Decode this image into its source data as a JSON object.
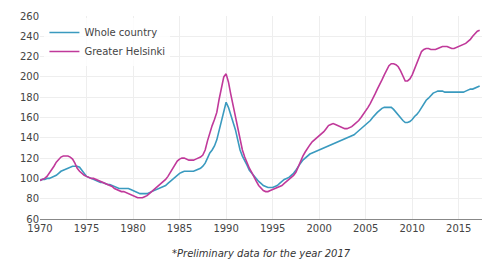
{
  "chart_data": {
    "type": "line",
    "annotations": [
      "*Preliminary data for the year 2017"
    ],
    "x": [
      1970.0,
      1970.25,
      1970.5,
      1970.75,
      1971.0,
      1971.25,
      1971.5,
      1971.75,
      1972.0,
      1972.25,
      1972.5,
      1972.75,
      1973.0,
      1973.25,
      1973.5,
      1973.75,
      1974.0,
      1974.25,
      1974.5,
      1974.75,
      1975.0,
      1975.25,
      1975.5,
      1975.75,
      1976.0,
      1976.25,
      1976.5,
      1976.75,
      1977.0,
      1977.25,
      1977.5,
      1977.75,
      1978.0,
      1978.25,
      1978.5,
      1978.75,
      1979.0,
      1979.25,
      1979.5,
      1979.75,
      1980.0,
      1980.25,
      1980.5,
      1980.75,
      1981.0,
      1981.25,
      1981.5,
      1981.75,
      1982.0,
      1982.25,
      1982.5,
      1982.75,
      1983.0,
      1983.25,
      1983.5,
      1983.75,
      1984.0,
      1984.25,
      1984.5,
      1984.75,
      1985.0,
      1985.25,
      1985.5,
      1985.75,
      1986.0,
      1986.25,
      1986.5,
      1986.75,
      1987.0,
      1987.25,
      1987.5,
      1987.75,
      1988.0,
      1988.25,
      1988.5,
      1988.75,
      1989.0,
      1989.25,
      1989.5,
      1989.75,
      1990.0,
      1990.25,
      1990.5,
      1990.75,
      1991.0,
      1991.25,
      1991.5,
      1991.75,
      1992.0,
      1992.25,
      1992.5,
      1992.75,
      1993.0,
      1993.25,
      1993.5,
      1993.75,
      1994.0,
      1994.25,
      1994.5,
      1994.75,
      1995.0,
      1995.25,
      1995.5,
      1995.75,
      1996.0,
      1996.25,
      1996.5,
      1996.75,
      1997.0,
      1997.25,
      1997.5,
      1997.75,
      1998.0,
      1998.25,
      1998.5,
      1998.75,
      1999.0,
      1999.25,
      1999.5,
      1999.75,
      2000.0,
      2000.25,
      2000.5,
      2000.75,
      2001.0,
      2001.25,
      2001.5,
      2001.75,
      2002.0,
      2002.25,
      2002.5,
      2002.75,
      2003.0,
      2003.25,
      2003.5,
      2003.75,
      2004.0,
      2004.25,
      2004.5,
      2004.75,
      2005.0,
      2005.25,
      2005.5,
      2005.75,
      2006.0,
      2006.25,
      2006.5,
      2006.75,
      2007.0,
      2007.25,
      2007.5,
      2007.75,
      2008.0,
      2008.25,
      2008.5,
      2008.75,
      2009.0,
      2009.25,
      2009.5,
      2009.75,
      2010.0,
      2010.25,
      2010.5,
      2010.75,
      2011.0,
      2011.25,
      2011.5,
      2011.75,
      2012.0,
      2012.25,
      2012.5,
      2012.75,
      2013.0,
      2013.25,
      2013.5,
      2013.75,
      2014.0,
      2014.25,
      2014.5,
      2014.75,
      2015.0,
      2015.25,
      2015.5,
      2015.75,
      2016.0,
      2016.25,
      2016.5,
      2016.75,
      2017.0,
      2017.25
    ],
    "series": [
      {
        "name": "Whole country",
        "color": "#3a9abf",
        "values": [
          98,
          99,
          99,
          100,
          100,
          101,
          102,
          103,
          105,
          107,
          108,
          109,
          110,
          111,
          112,
          112,
          112,
          111,
          108,
          105,
          102,
          101,
          100,
          99,
          98,
          97,
          96,
          96,
          95,
          94,
          94,
          93,
          92,
          91,
          90,
          90,
          90,
          90,
          90,
          89,
          88,
          87,
          86,
          85,
          85,
          85,
          85,
          86,
          87,
          88,
          89,
          90,
          91,
          92,
          93,
          95,
          97,
          99,
          101,
          103,
          105,
          106,
          107,
          107,
          107,
          107,
          107,
          108,
          109,
          110,
          112,
          115,
          120,
          125,
          128,
          132,
          138,
          148,
          158,
          168,
          175,
          170,
          163,
          157,
          148,
          138,
          128,
          122,
          118,
          113,
          108,
          105,
          102,
          100,
          97,
          95,
          93,
          92,
          91,
          91,
          91,
          92,
          93,
          95,
          97,
          99,
          100,
          101,
          103,
          105,
          108,
          112,
          115,
          118,
          120,
          122,
          124,
          125,
          126,
          127,
          128,
          129,
          130,
          131,
          132,
          133,
          134,
          135,
          136,
          137,
          138,
          139,
          140,
          141,
          142,
          143,
          145,
          147,
          149,
          151,
          153,
          155,
          157,
          160,
          163,
          165,
          167,
          169,
          170,
          170,
          170,
          170,
          168,
          165,
          162,
          160,
          157,
          155,
          155,
          156,
          158,
          161,
          163,
          166,
          170,
          174,
          177,
          179,
          182,
          184,
          185,
          186,
          186,
          186,
          185,
          185,
          185,
          185,
          185,
          185,
          185,
          185,
          185,
          186,
          187,
          188,
          188,
          189,
          190,
          191
        ]
      },
      {
        "name": "Greater Helsinki",
        "color": "#c0399a",
        "values": [
          98,
          99,
          100,
          102,
          105,
          108,
          112,
          116,
          119,
          121,
          122,
          122,
          122,
          121,
          119,
          115,
          110,
          107,
          105,
          103,
          102,
          101,
          100,
          100,
          99,
          98,
          97,
          96,
          95,
          94,
          93,
          92,
          90,
          89,
          88,
          87,
          87,
          86,
          85,
          84,
          83,
          82,
          81,
          81,
          81,
          82,
          83,
          85,
          87,
          89,
          91,
          93,
          95,
          97,
          99,
          102,
          106,
          110,
          114,
          117,
          119,
          120,
          120,
          119,
          118,
          118,
          118,
          119,
          120,
          121,
          123,
          128,
          137,
          145,
          152,
          158,
          165,
          178,
          190,
          200,
          203,
          195,
          183,
          172,
          160,
          148,
          137,
          128,
          121,
          115,
          110,
          106,
          101,
          97,
          93,
          90,
          88,
          87,
          87,
          88,
          89,
          90,
          91,
          92,
          93,
          95,
          97,
          99,
          101,
          103,
          106,
          112,
          118,
          122,
          126,
          130,
          133,
          136,
          138,
          140,
          142,
          144,
          146,
          149,
          152,
          153,
          154,
          153,
          152,
          151,
          150,
          149,
          149,
          150,
          151,
          153,
          155,
          157,
          160,
          163,
          166,
          170,
          174,
          178,
          183,
          188,
          192,
          197,
          202,
          207,
          211,
          213,
          213,
          212,
          210,
          206,
          200,
          196,
          196,
          198,
          202,
          208,
          215,
          220,
          225,
          227,
          228,
          228,
          227,
          227,
          227,
          228,
          229,
          230,
          230,
          230,
          229,
          228,
          228,
          229,
          230,
          231,
          232,
          233,
          235,
          237,
          240,
          243,
          245,
          246
        ]
      }
    ],
    "xlim": [
      1970,
      2017.5
    ],
    "ylim": [
      60,
      260
    ],
    "xticks": [
      1970,
      1975,
      1980,
      1985,
      1990,
      1995,
      2000,
      2005,
      2010,
      2015
    ],
    "yticks": [
      60,
      80,
      100,
      120,
      140,
      160,
      180,
      200,
      220,
      240,
      260
    ],
    "grid": true,
    "legend": "upper left"
  }
}
